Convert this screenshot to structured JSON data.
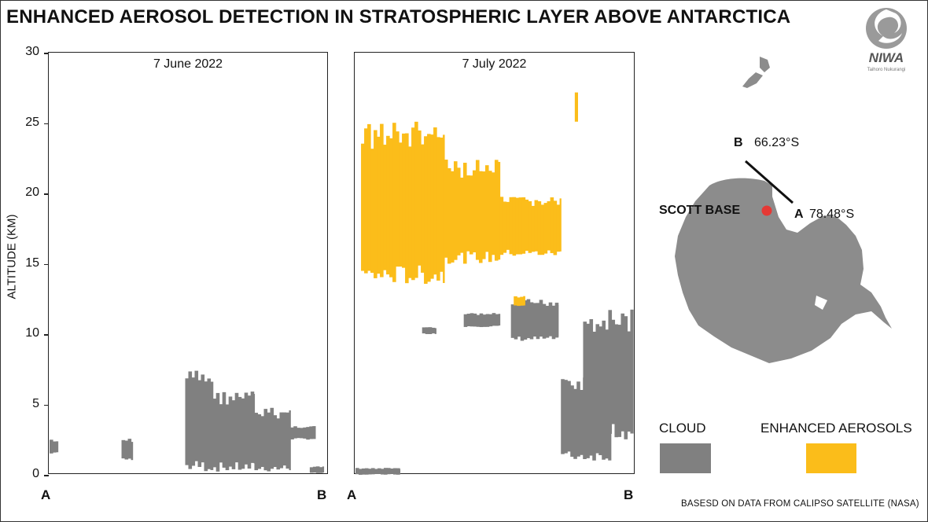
{
  "title": "ENHANCED AEROSOL DETECTION IN STRATOSPHERIC LAYER ABOVE ANTARCTICA",
  "logo": {
    "word": "NIWA",
    "sub": "Taihoro Nukurangi"
  },
  "chart_data": {
    "type": "curtain",
    "ylabel": "ALTITUDE (KM)",
    "ylim": [
      0,
      30
    ],
    "yticks": [
      0,
      5,
      10,
      15,
      20,
      25,
      30
    ],
    "x_endpoints": [
      "A",
      "B"
    ],
    "panels": [
      {
        "label": "7 June 2022",
        "cloud_regions": [
          {
            "x": [
              0.49,
              0.59
            ],
            "y": [
              0.2,
              7.5
            ]
          },
          {
            "x": [
              0.59,
              0.74
            ],
            "y": [
              0.2,
              6.0
            ]
          },
          {
            "x": [
              0.74,
              0.87
            ],
            "y": [
              0.2,
              4.8
            ]
          },
          {
            "x": [
              0.87,
              0.96
            ],
            "y": [
              2.5,
              3.5
            ]
          },
          {
            "x": [
              0.94,
              0.99
            ],
            "y": [
              0.1,
              0.6
            ]
          },
          {
            "x": [
              0.26,
              0.3
            ],
            "y": [
              1.0,
              2.6
            ]
          },
          {
            "x": [
              0.0,
              0.03
            ],
            "y": [
              1.5,
              2.5
            ]
          }
        ],
        "aerosol_regions": []
      },
      {
        "label": "7 July 2022",
        "cloud_regions": [
          {
            "x": [
              0.24,
              0.29
            ],
            "y": [
              10.0,
              10.5
            ]
          },
          {
            "x": [
              0.39,
              0.52
            ],
            "y": [
              10.5,
              11.5
            ]
          },
          {
            "x": [
              0.56,
              0.73
            ],
            "y": [
              9.5,
              12.5
            ]
          },
          {
            "x": [
              0.82,
              1.0
            ],
            "y": [
              2.5,
              11.8
            ]
          },
          {
            "x": [
              0.74,
              0.92
            ],
            "y": [
              1.0,
              7.0
            ]
          },
          {
            "x": [
              0.0,
              0.16
            ],
            "y": [
              0.0,
              0.5
            ]
          }
        ],
        "aerosol_regions": [
          {
            "x": [
              0.02,
              0.32
            ],
            "y": [
              13.5,
              25.2
            ]
          },
          {
            "x": [
              0.32,
              0.52
            ],
            "y": [
              15.0,
              22.4
            ]
          },
          {
            "x": [
              0.52,
              0.74
            ],
            "y": [
              15.5,
              19.8
            ]
          },
          {
            "x": [
              0.57,
              0.61
            ],
            "y": [
              12.0,
              12.7
            ]
          },
          {
            "x": [
              0.79,
              0.8
            ],
            "y": [
              25.0,
              27.5
            ]
          }
        ]
      }
    ],
    "legend": [
      {
        "label": "CLOUD",
        "color": "#808080"
      },
      {
        "label": "ENHANCED AEROSOLS",
        "color": "#fbbd1a"
      }
    ]
  },
  "map": {
    "scott_base": "SCOTT BASE",
    "point_a": "A",
    "lat_a": "78.48°S",
    "point_b": "B",
    "lat_b": "66.23°S",
    "marker_color": "#e53935",
    "land_color": "#8c8c8c"
  },
  "source": "BASESD ON DATA FROM CALIPSO SATELLITE (NASA)"
}
